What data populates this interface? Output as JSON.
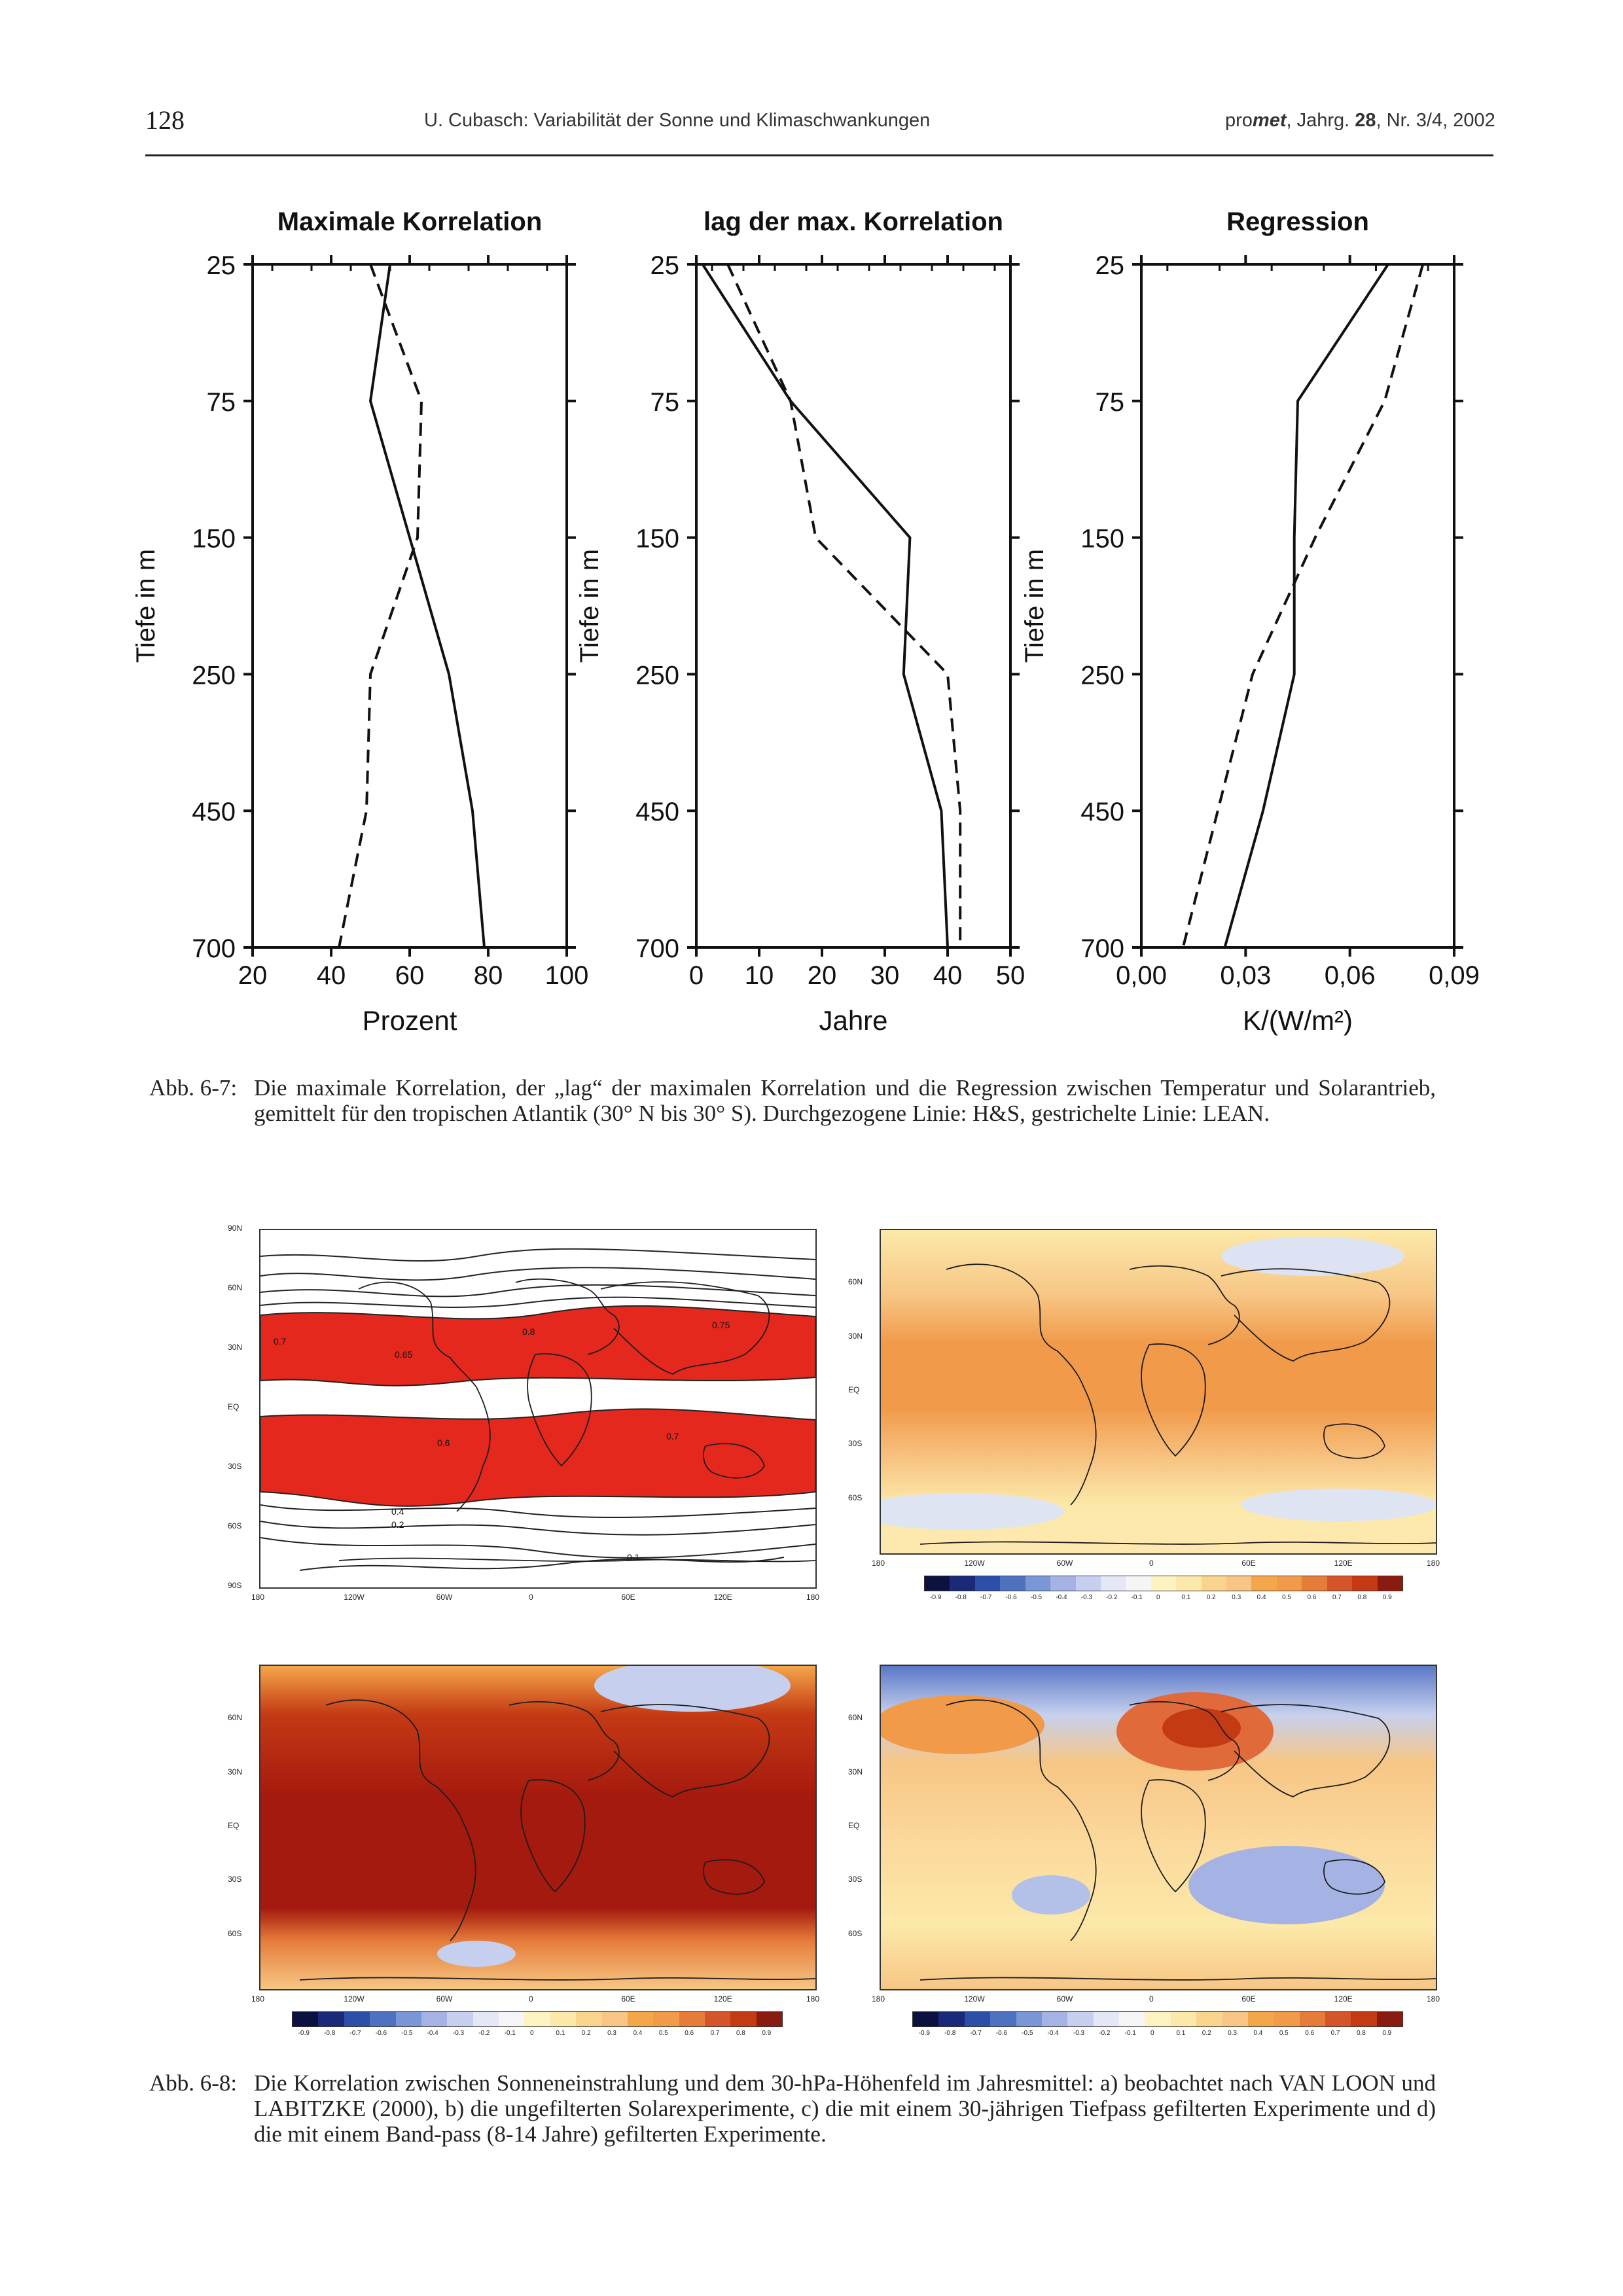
{
  "header": {
    "page_number": "128",
    "running_title": "U. Cubasch: Variabilität der Sonne und Klimaschwankungen",
    "journal_prefix": "pro",
    "journal_bold": "met",
    "journal_suffix": ", Jahrg. ",
    "volume": "28",
    "issue": ", Nr. 3/4, 2002"
  },
  "figure_6_7": {
    "caption_label": "Abb. 6-7:",
    "caption_text": "Die maximale Korrelation, der „lag“ der maximalen Korrelation und die Regression zwischen Temperatur und Solarantrieb, gemittelt für den tropischen Atlantik (30° N bis 30° S). Durchgezogene Linie: H&S, gestrichelte Linie: LEAN.",
    "depth_ticks": [
      "25",
      "75",
      "150",
      "250",
      "450",
      "700"
    ]
  },
  "chart_data": [
    {
      "type": "line",
      "title": "Maximale Korrelation",
      "xlabel": "Prozent",
      "ylabel": "Tiefe in m",
      "xticks": [
        "20",
        "40",
        "60",
        "80",
        "100"
      ],
      "xlim": [
        20,
        100
      ],
      "y_categories": [
        "25",
        "75",
        "150",
        "250",
        "450",
        "700"
      ],
      "series": [
        {
          "name": "H&S",
          "style": "solid",
          "values": [
            55,
            50,
            60,
            70,
            76,
            79
          ]
        },
        {
          "name": "LEAN",
          "style": "dashed",
          "values": [
            50,
            63,
            62,
            50,
            49,
            42
          ]
        }
      ]
    },
    {
      "type": "line",
      "title": "lag der max. Korrelation",
      "xlabel": "Jahre",
      "ylabel": "Tiefe in m",
      "xticks": [
        "0",
        "10",
        "20",
        "30",
        "40",
        "50"
      ],
      "xlim": [
        0,
        50
      ],
      "y_categories": [
        "25",
        "75",
        "150",
        "250",
        "450",
        "700"
      ],
      "series": [
        {
          "name": "H&S",
          "style": "solid",
          "values": [
            1,
            15,
            34,
            33,
            39,
            40
          ]
        },
        {
          "name": "LEAN",
          "style": "dashed",
          "values": [
            5,
            15,
            19,
            40,
            42,
            42
          ]
        }
      ]
    },
    {
      "type": "line",
      "title": "Regression",
      "xlabel": "K/(W/m²)",
      "ylabel": "Tiefe in m",
      "xticks": [
        "0,00",
        "0,03",
        "0,06",
        "0,09"
      ],
      "xlim": [
        0,
        0.09
      ],
      "y_categories": [
        "25",
        "75",
        "150",
        "250",
        "450",
        "700"
      ],
      "series": [
        {
          "name": "H&S",
          "style": "solid",
          "values": [
            0.071,
            0.045,
            0.044,
            0.044,
            0.035,
            0.024
          ]
        },
        {
          "name": "LEAN",
          "style": "dashed",
          "values": [
            0.081,
            0.07,
            0.05,
            0.032,
            0.022,
            0.012
          ]
        }
      ]
    }
  ],
  "figure_6_8": {
    "caption_label": "Abb. 6-8:",
    "caption_text": "Die Korrelation zwischen Sonneneinstrahlung und dem 30-hPa-Höhenfeld im Jahresmittel: a) beobachtet nach VAN LOON und LABITZKE (2000), b) die ungefilterten Solarexperimente, c) die mit einem 30-jährigen Tiefpass gefilterten Experimente und d) die mit einem Band-pass (8-14 Jahre) gefilterten Experimente.",
    "map_a_lat_labels": [
      "90N",
      "60N",
      "30N",
      "EQ",
      "30S",
      "60S",
      "90S"
    ],
    "map_lat_labels": [
      "60N",
      "30N",
      "EQ",
      "30S",
      "60S"
    ],
    "map_lon_labels": [
      "180",
      "120W",
      "60W",
      "0",
      "60E",
      "120E",
      "180"
    ],
    "colorbar_labels": [
      "-0.9",
      "-0.8",
      "-0.7",
      "-0.6",
      "-0.5",
      "-0.4",
      "-0.3",
      "-0.2",
      "-0.1",
      "0",
      "0.1",
      "0.2",
      "0.3",
      "0.4",
      "0.5",
      "0.6",
      "0.7",
      "0.8",
      "0.9"
    ],
    "contour_labels": [
      "0.7",
      "0.65",
      "0.8",
      "0.75",
      "0.6",
      "0.4",
      "0.2",
      "0.1"
    ]
  },
  "colors": {
    "obs_red": "#e5281d",
    "dark_red": "#a51a0e",
    "orange": "#f19a4a",
    "light_orange": "#f7c685",
    "yellow": "#fce9a9",
    "light_blue": "#c6d0ee",
    "blue": "#2c4fa8",
    "navy": "#0b1240"
  }
}
